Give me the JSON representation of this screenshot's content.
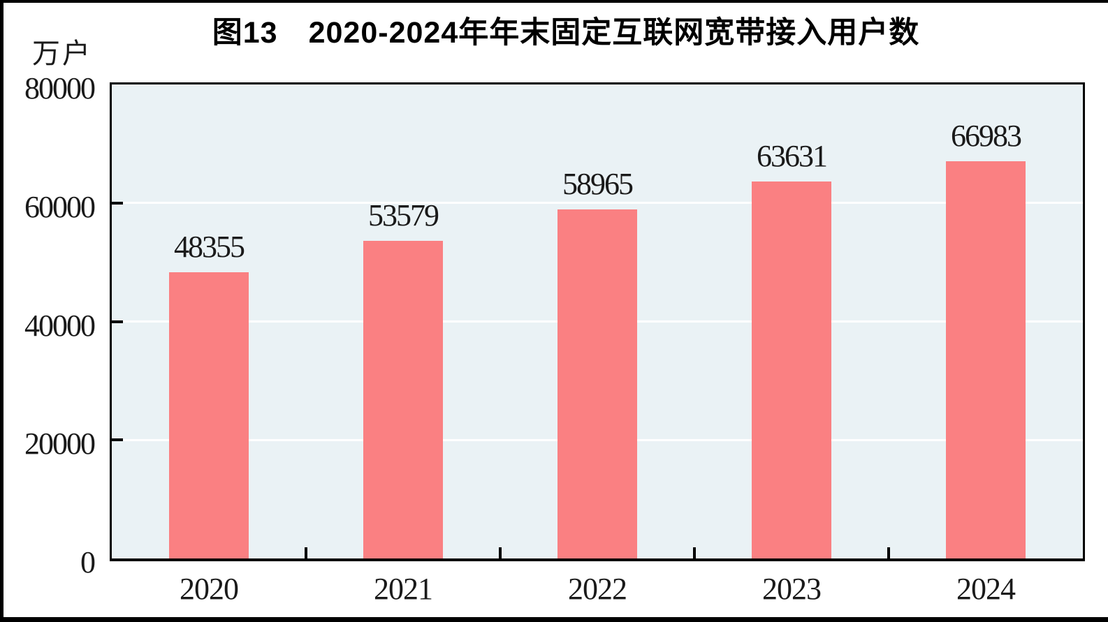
{
  "page": {
    "title": "图13　2020-2024年年末固定互联网宽带接入用户数",
    "unit_label": "万户"
  },
  "chart_data": {
    "type": "bar",
    "title": "图13　2020-2024年年末固定互联网宽带接入用户数",
    "ylabel": "万户",
    "xlabel": "",
    "categories": [
      "2020",
      "2021",
      "2022",
      "2023",
      "2024"
    ],
    "values": [
      48355,
      53579,
      58965,
      63631,
      66983
    ],
    "value_labels": [
      "48355",
      "53579",
      "58965",
      "63631",
      "66983"
    ],
    "ylim": [
      0,
      80000
    ],
    "yticks": [
      0,
      20000,
      40000,
      60000,
      80000
    ],
    "ytick_labels": [
      "0",
      "20000",
      "40000",
      "60000",
      "80000"
    ],
    "grid": "horizontal",
    "legend_position": "none",
    "colors": {
      "bar": "#FA8082",
      "plot_background": "#EAF2F5",
      "gridline": "#FFFFFF",
      "axis": "#000000",
      "text": "#1A1A1A"
    }
  }
}
